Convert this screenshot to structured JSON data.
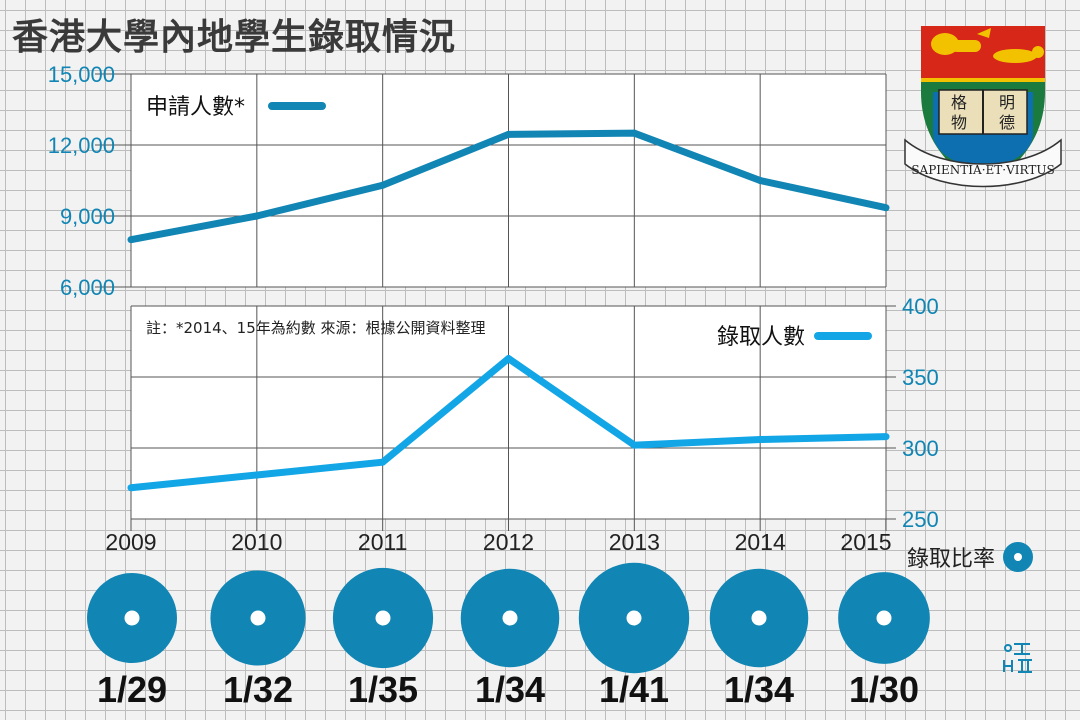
{
  "title": "香港大學內地學生錄取情況",
  "chart_data": {
    "type": "line",
    "x": [
      "2009",
      "2010",
      "2011",
      "2012",
      "2013",
      "2014",
      "2015"
    ],
    "series": [
      {
        "name": "申請人數*",
        "values": [
          8000,
          9000,
          10300,
          12450,
          12500,
          10500,
          9350
        ],
        "axis": "left",
        "ylim": [
          6000,
          15000
        ],
        "yticks": [
          "15,000",
          "12,000",
          "9,000",
          "6,000"
        ],
        "color": "#1185b3"
      },
      {
        "name": "錄取人數",
        "values": [
          272,
          281,
          290,
          363,
          302,
          306,
          308
        ],
        "axis": "right",
        "ylim": [
          250,
          400
        ],
        "yticks": [
          "400",
          "350",
          "300",
          "250"
        ],
        "color": "#12a6e6"
      }
    ],
    "ratio_label": "錄取比率",
    "ratios": [
      "1/29",
      "1/32",
      "1/35",
      "1/34",
      "1/41",
      "1/34",
      "1/30"
    ],
    "note": "註：*2014、15年為約數     來源：根據公開資料整理",
    "grid": true
  },
  "colors": {
    "title": "#3a3a3a",
    "applicants": "#1185b3",
    "admitted": "#12a6e6",
    "ratio": "#1185b3"
  },
  "badge": {
    "motto": "SAPIENTIA·ET·VIRTUS",
    "book_text": [
      "格",
      "明",
      "物",
      "德"
    ]
  }
}
